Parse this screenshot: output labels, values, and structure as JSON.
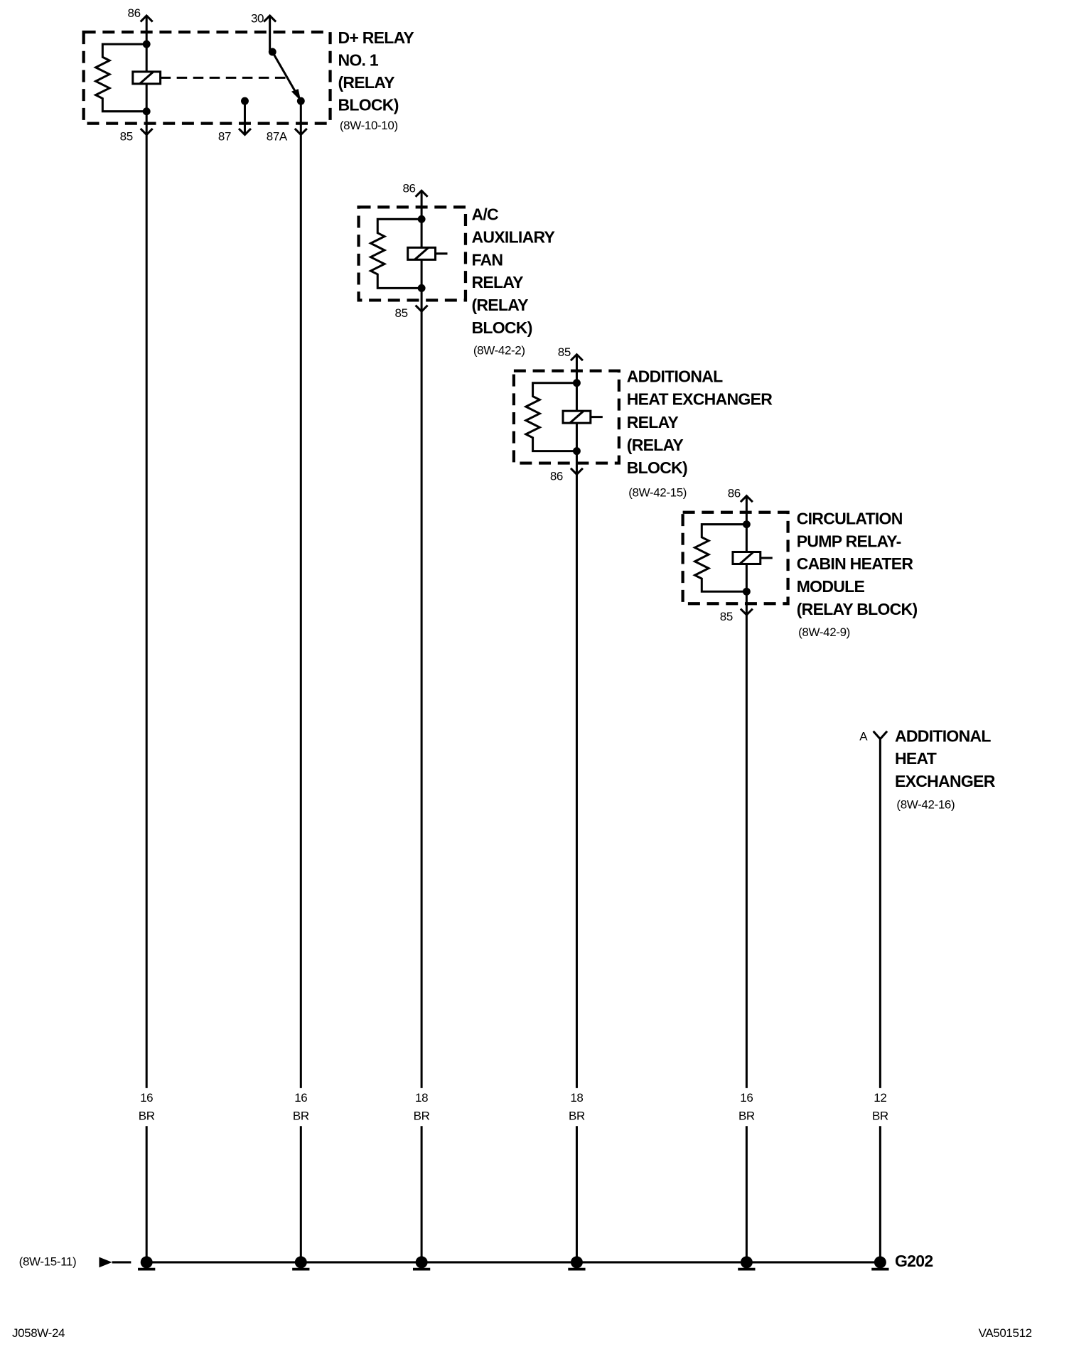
{
  "components": [
    {
      "label_lines": [
        "D+ RELAY",
        "NO. 1",
        "(RELAY",
        "BLOCK)"
      ],
      "ref": "(8W-10-10)",
      "pins": [
        "86",
        "30",
        "85",
        "87",
        "87A"
      ]
    },
    {
      "label_lines": [
        "A/C",
        "AUXILIARY",
        "FAN",
        "RELAY",
        "(RELAY",
        "BLOCK)"
      ],
      "ref": "(8W-42-2)",
      "pins": [
        "86",
        "85"
      ]
    },
    {
      "label_lines": [
        "ADDITIONAL",
        "HEAT EXCHANGER",
        "RELAY",
        "(RELAY",
        "BLOCK)"
      ],
      "ref": "(8W-42-15)",
      "pins": [
        "85",
        "86"
      ]
    },
    {
      "label_lines": [
        "CIRCULATION",
        "PUMP RELAY-",
        "CABIN HEATER",
        "MODULE",
        "(RELAY BLOCK)"
      ],
      "ref": "(8W-42-9)",
      "pins": [
        "86",
        "85"
      ]
    }
  ],
  "connector": {
    "pin": "A",
    "label_lines": [
      "ADDITIONAL",
      "HEAT",
      "EXCHANGER"
    ],
    "ref": "(8W-42-16)"
  },
  "wires": [
    {
      "gauge": "16",
      "color": "BR"
    },
    {
      "gauge": "16",
      "color": "BR"
    },
    {
      "gauge": "18",
      "color": "BR"
    },
    {
      "gauge": "18",
      "color": "BR"
    },
    {
      "gauge": "16",
      "color": "BR"
    },
    {
      "gauge": "12",
      "color": "BR"
    }
  ],
  "ground": {
    "label": "G202",
    "ref": "(8W-15-11)"
  },
  "footer": {
    "left": "J058W-24",
    "right": "VA501512"
  }
}
